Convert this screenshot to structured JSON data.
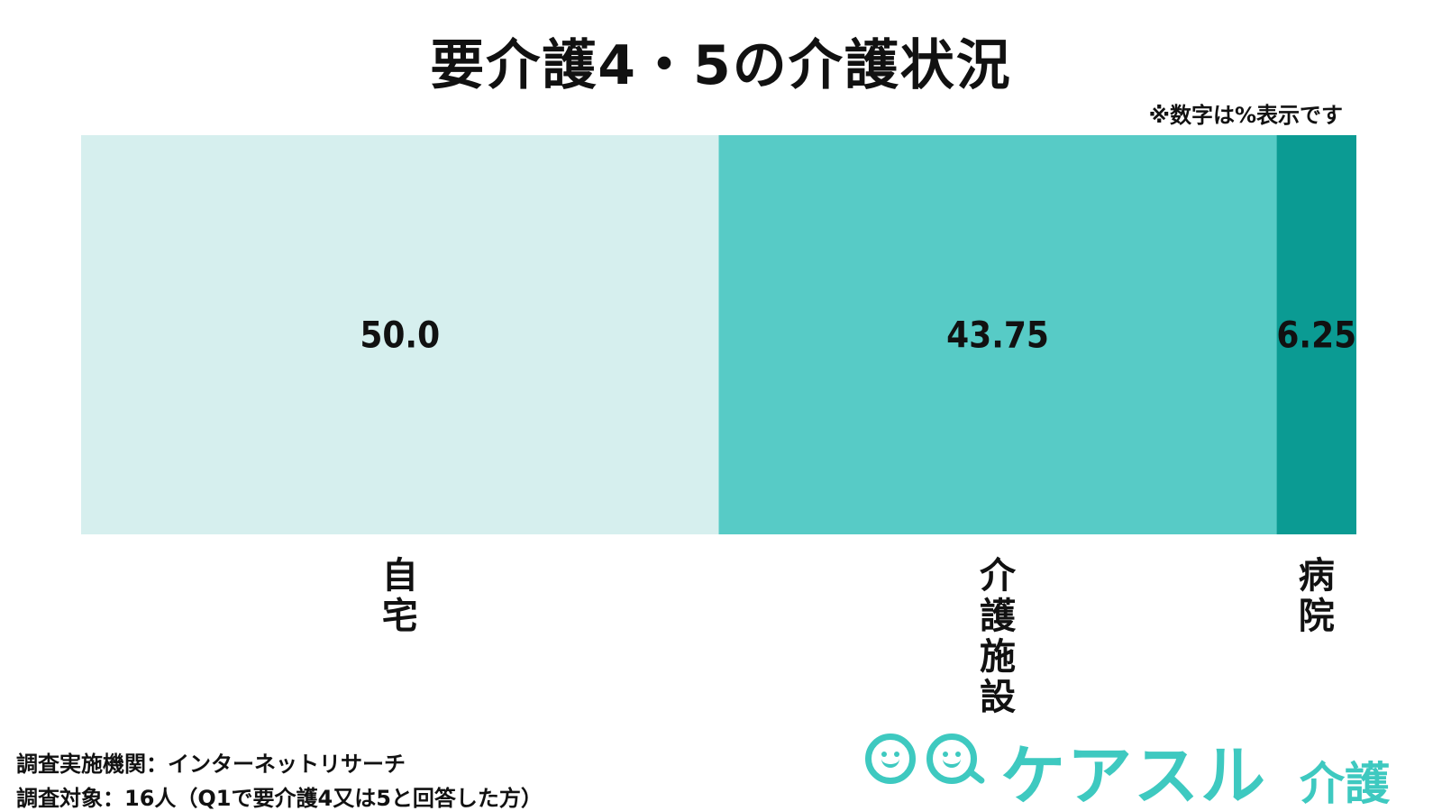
{
  "title": "要介護4・5の介護状況",
  "note": "※数字は%表示です",
  "chart_data": {
    "type": "bar",
    "stacked": true,
    "orientation": "horizontal",
    "unit": "%",
    "xlim": [
      0,
      100
    ],
    "categories": [
      "自宅",
      "介護施設",
      "病院"
    ],
    "values": [
      50.0,
      43.75,
      6.25
    ],
    "value_labels": [
      "50.0",
      "43.75",
      "6.25"
    ],
    "colors": [
      "#d6efee",
      "#57cbc6",
      "#0b9b93"
    ]
  },
  "footer": {
    "line1": "調査実施機関：インターネットリサーチ",
    "line2": "調査対象：16人（Q1で要介護4又は5と回答した方）"
  },
  "logo": {
    "text": "ケアスル",
    "sub": "介護",
    "icon": "smiley-faces-logo-icon",
    "color": "#3ec9c0"
  }
}
